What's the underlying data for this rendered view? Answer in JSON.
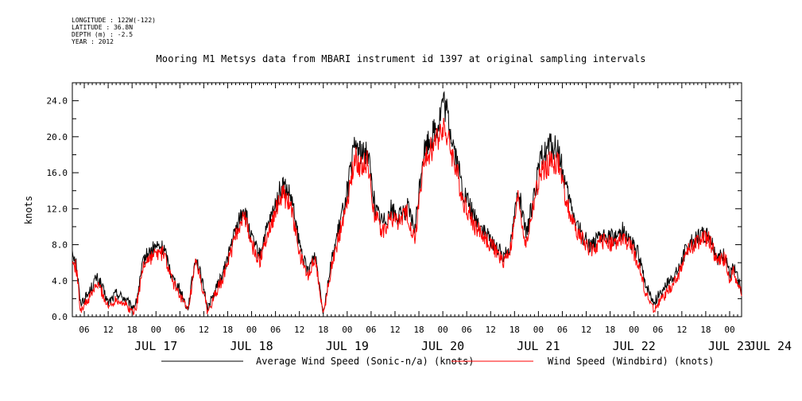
{
  "header": {
    "longitude": "LONGITUDE : 122W(-122)",
    "latitude": "LATITUDE : 36.8N",
    "depth": "DEPTH (m) : -2.5",
    "year": "YEAR : 2012"
  },
  "colors": {
    "series_black": "#000000",
    "series_red": "#ff0000"
  },
  "chart_data": {
    "type": "line",
    "title": "Mooring M1 Metsys data from MBARI instrument id 1397 at original sampling intervals",
    "ylabel": "knots",
    "xlabel": "",
    "ylim": [
      0.0,
      26.0
    ],
    "xlim": [
      "2012-07-17T03:00",
      "2012-07-24T03:00"
    ],
    "y_ticks": [
      "0.0",
      "4.0",
      "8.0",
      "12.0",
      "16.0",
      "20.0",
      "24.0"
    ],
    "x_hour_ticks": [
      "06",
      "12",
      "18",
      "00",
      "06",
      "12",
      "18",
      "00",
      "06",
      "12",
      "18",
      "00",
      "06",
      "12",
      "18",
      "00",
      "06",
      "12",
      "18",
      "00",
      "06",
      "12",
      "18",
      "00",
      "06",
      "12",
      "18",
      "00"
    ],
    "x_date_labels": [
      "JUL 17",
      "JUL 18",
      "JUL 19",
      "JUL 20",
      "JUL 21",
      "JUL 22",
      "JUL 23",
      "JUL 24"
    ],
    "grid": false,
    "legend_position": "bottom",
    "series": [
      {
        "name": "Average Wind Speed (Sonic-n/a) (knots)",
        "color": "#000000",
        "x": [
          "2012-07-17T03:00",
          "2012-07-17T04:00",
          "2012-07-17T05:00",
          "2012-07-17T07:00",
          "2012-07-17T09:00",
          "2012-07-17T10:00",
          "2012-07-17T12:00",
          "2012-07-17T14:00",
          "2012-07-17T16:00",
          "2012-07-17T18:00",
          "2012-07-17T19:00",
          "2012-07-17T21:00",
          "2012-07-18T00:00",
          "2012-07-18T02:00",
          "2012-07-18T04:00",
          "2012-07-18T06:00",
          "2012-07-18T08:00",
          "2012-07-18T10:00",
          "2012-07-18T11:00",
          "2012-07-18T13:00",
          "2012-07-18T15:00",
          "2012-07-18T17:00",
          "2012-07-18T19:00",
          "2012-07-18T22:00",
          "2012-07-19T00:00",
          "2012-07-19T02:00",
          "2012-07-19T03:00",
          "2012-07-19T05:00",
          "2012-07-19T07:00",
          "2012-07-19T08:00",
          "2012-07-19T10:00",
          "2012-07-19T12:00",
          "2012-07-19T14:00",
          "2012-07-19T16:00",
          "2012-07-19T18:00",
          "2012-07-19T20:00",
          "2012-07-19T22:00",
          "2012-07-20T00:00",
          "2012-07-20T02:00",
          "2012-07-20T04:00",
          "2012-07-20T05:00",
          "2012-07-20T07:00",
          "2012-07-20T09:00",
          "2012-07-20T11:00",
          "2012-07-20T13:00",
          "2012-07-20T15:00",
          "2012-07-20T17:00",
          "2012-07-20T19:00",
          "2012-07-20T21:00",
          "2012-07-20T23:00",
          "2012-07-21T00:00",
          "2012-07-21T01:00",
          "2012-07-21T03:00",
          "2012-07-21T05:00",
          "2012-07-21T08:00",
          "2012-07-21T11:00",
          "2012-07-21T13:00",
          "2012-07-21T15:00",
          "2012-07-21T17:00",
          "2012-07-21T19:00",
          "2012-07-21T20:00",
          "2012-07-21T21:00",
          "2012-07-21T23:00",
          "2012-07-22T01:00",
          "2012-07-22T03:00",
          "2012-07-22T05:00",
          "2012-07-22T07:00",
          "2012-07-22T09:00",
          "2012-07-22T11:00",
          "2012-07-22T13:00",
          "2012-07-22T15:00",
          "2012-07-22T17:00",
          "2012-07-22T19:00",
          "2012-07-22T21:00",
          "2012-07-22T23:00",
          "2012-07-23T01:00",
          "2012-07-23T03:00",
          "2012-07-23T05:00",
          "2012-07-23T07:00",
          "2012-07-23T09:00",
          "2012-07-23T11:00",
          "2012-07-23T13:00",
          "2012-07-23T15:00",
          "2012-07-23T17:00",
          "2012-07-23T19:00",
          "2012-07-23T21:00",
          "2012-07-23T23:00",
          "2012-07-24T00:00",
          "2012-07-24T01:00",
          "2012-07-24T03:00"
        ],
        "values": [
          7.5,
          6.0,
          1.5,
          2.5,
          4.3,
          3.8,
          1.5,
          2.6,
          2.1,
          1.0,
          1.5,
          6.5,
          7.8,
          7.6,
          4.5,
          3.0,
          0.8,
          6.8,
          5.0,
          1.0,
          3.0,
          5.0,
          8.2,
          12.2,
          8.6,
          6.8,
          8.5,
          11.0,
          13.8,
          14.5,
          13.0,
          8.0,
          5.0,
          7.0,
          0.5,
          6.0,
          10.0,
          14.0,
          19.2,
          17.8,
          19.0,
          12.0,
          10.5,
          12.0,
          11.0,
          12.2,
          9.6,
          18.0,
          20.0,
          21.5,
          24.0,
          22.5,
          18.5,
          14.0,
          11.0,
          9.0,
          8.0,
          6.8,
          8.0,
          14.5,
          11.0,
          9.0,
          14.0,
          18.0,
          19.0,
          18.5,
          14.0,
          11.0,
          9.0,
          8.0,
          8.5,
          9.0,
          8.8,
          9.6,
          8.5,
          7.0,
          3.5,
          1.5,
          3.0,
          4.0,
          5.0,
          7.5,
          8.5,
          9.2,
          9.0,
          6.5,
          7.0,
          4.5,
          5.5,
          3.0
        ]
      },
      {
        "name": "Wind Speed (Windbird) (knots)",
        "color": "#ff0000",
        "x": [
          "2012-07-17T03:00",
          "2012-07-17T04:00",
          "2012-07-17T05:00",
          "2012-07-17T07:00",
          "2012-07-17T09:00",
          "2012-07-17T10:00",
          "2012-07-17T12:00",
          "2012-07-17T14:00",
          "2012-07-17T16:00",
          "2012-07-17T18:00",
          "2012-07-17T19:00",
          "2012-07-17T21:00",
          "2012-07-18T00:00",
          "2012-07-18T02:00",
          "2012-07-18T04:00",
          "2012-07-18T06:00",
          "2012-07-18T08:00",
          "2012-07-18T10:00",
          "2012-07-18T11:00",
          "2012-07-18T13:00",
          "2012-07-18T15:00",
          "2012-07-18T17:00",
          "2012-07-18T19:00",
          "2012-07-18T22:00",
          "2012-07-19T00:00",
          "2012-07-19T02:00",
          "2012-07-19T03:00",
          "2012-07-19T05:00",
          "2012-07-19T07:00",
          "2012-07-19T08:00",
          "2012-07-19T10:00",
          "2012-07-19T12:00",
          "2012-07-19T14:00",
          "2012-07-19T16:00",
          "2012-07-19T18:00",
          "2012-07-19T20:00",
          "2012-07-19T22:00",
          "2012-07-20T00:00",
          "2012-07-20T02:00",
          "2012-07-20T04:00",
          "2012-07-20T05:00",
          "2012-07-20T07:00",
          "2012-07-20T09:00",
          "2012-07-20T11:00",
          "2012-07-20T13:00",
          "2012-07-20T15:00",
          "2012-07-20T17:00",
          "2012-07-20T19:00",
          "2012-07-20T21:00",
          "2012-07-20T23:00",
          "2012-07-21T00:00",
          "2012-07-21T01:00",
          "2012-07-21T03:00",
          "2012-07-21T05:00",
          "2012-07-21T08:00",
          "2012-07-21T11:00",
          "2012-07-21T13:00",
          "2012-07-21T15:00",
          "2012-07-21T17:00",
          "2012-07-21T19:00",
          "2012-07-21T20:00",
          "2012-07-21T21:00",
          "2012-07-21T23:00",
          "2012-07-22T01:00",
          "2012-07-22T03:00",
          "2012-07-22T05:00",
          "2012-07-22T07:00",
          "2012-07-22T09:00",
          "2012-07-22T11:00",
          "2012-07-22T13:00",
          "2012-07-22T15:00",
          "2012-07-22T17:00",
          "2012-07-22T19:00",
          "2012-07-22T21:00",
          "2012-07-22T23:00",
          "2012-07-23T01:00",
          "2012-07-23T03:00",
          "2012-07-23T05:00",
          "2012-07-23T07:00",
          "2012-07-23T09:00",
          "2012-07-23T11:00",
          "2012-07-23T13:00",
          "2012-07-23T15:00",
          "2012-07-23T17:00",
          "2012-07-23T19:00",
          "2012-07-23T21:00",
          "2012-07-23T23:00",
          "2012-07-24T00:00",
          "2012-07-24T01:00",
          "2012-07-24T03:00"
        ],
        "values": [
          6.0,
          5.5,
          0.8,
          1.8,
          3.5,
          3.2,
          1.0,
          2.0,
          1.5,
          0.5,
          1.0,
          6.0,
          7.0,
          7.0,
          4.0,
          2.5,
          0.5,
          6.0,
          4.5,
          0.5,
          2.5,
          4.5,
          7.5,
          11.5,
          8.0,
          6.0,
          8.0,
          10.5,
          13.0,
          13.5,
          12.0,
          7.0,
          4.5,
          6.5,
          0.2,
          5.5,
          9.0,
          13.0,
          17.5,
          16.5,
          17.5,
          11.0,
          9.5,
          11.0,
          10.5,
          11.5,
          8.5,
          16.5,
          18.5,
          20.0,
          21.5,
          20.0,
          17.0,
          13.0,
          10.0,
          8.5,
          7.5,
          6.0,
          7.5,
          13.5,
          10.0,
          8.0,
          13.0,
          16.5,
          17.0,
          17.0,
          13.0,
          10.0,
          8.5,
          7.5,
          8.0,
          8.5,
          8.0,
          8.5,
          8.0,
          6.0,
          2.5,
          0.8,
          2.0,
          3.0,
          4.5,
          7.0,
          8.0,
          8.7,
          8.5,
          6.0,
          6.5,
          4.0,
          5.0,
          2.5
        ]
      }
    ]
  }
}
